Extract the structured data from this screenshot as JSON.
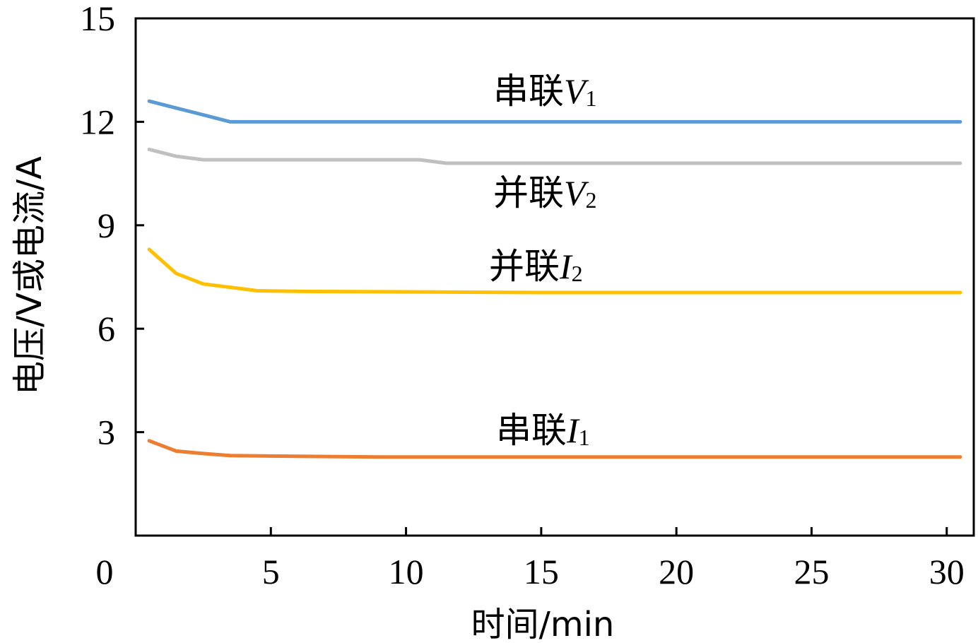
{
  "chart_data": {
    "type": "line",
    "xlabel": "时间/min",
    "ylabel": "电压/V或电流/A",
    "xlim": [
      0,
      31
    ],
    "ylim": [
      0,
      15
    ],
    "x_ticks": [
      0,
      5,
      10,
      15,
      20,
      25,
      30
    ],
    "y_ticks": [
      3,
      6,
      9,
      12,
      15
    ],
    "grid": false,
    "legend": "none",
    "series": [
      {
        "name": "串联V1",
        "label_prefix": "串联",
        "label_var": "V",
        "label_sub": "1",
        "color": "#5b9bd5",
        "x": [
          0.5,
          1.5,
          2.5,
          3.5,
          5,
          10,
          15,
          20,
          25,
          30.5
        ],
        "y": [
          12.6,
          12.4,
          12.2,
          12.0,
          12.0,
          12.0,
          12.0,
          12.0,
          12.0,
          12.0
        ]
      },
      {
        "name": "并联V2",
        "label_prefix": "并联",
        "label_var": "V",
        "label_sub": "2",
        "color": "#c0c0c0",
        "x": [
          0.5,
          1.5,
          2.5,
          5,
          10.5,
          11.5,
          15,
          20,
          25,
          30.5
        ],
        "y": [
          11.2,
          11.0,
          10.9,
          10.9,
          10.9,
          10.8,
          10.8,
          10.8,
          10.8,
          10.8
        ]
      },
      {
        "name": "并联I2",
        "label_prefix": "并联",
        "label_var": "I",
        "label_sub": "2",
        "color": "#ffc000",
        "x": [
          0.5,
          1.5,
          2.5,
          3.5,
          4.5,
          6.5,
          10,
          15,
          20,
          25,
          30.5
        ],
        "y": [
          8.3,
          7.6,
          7.3,
          7.2,
          7.1,
          7.08,
          7.07,
          7.05,
          7.05,
          7.05,
          7.05
        ]
      },
      {
        "name": "串联I1",
        "label_prefix": "串联",
        "label_var": "I",
        "label_sub": "1",
        "color": "#ed7d31",
        "x": [
          0.5,
          1.5,
          2.5,
          3.5,
          6,
          9,
          15,
          20,
          25,
          30.5
        ],
        "y": [
          2.75,
          2.45,
          2.38,
          2.32,
          2.3,
          2.28,
          2.28,
          2.28,
          2.28,
          2.28
        ]
      }
    ]
  }
}
